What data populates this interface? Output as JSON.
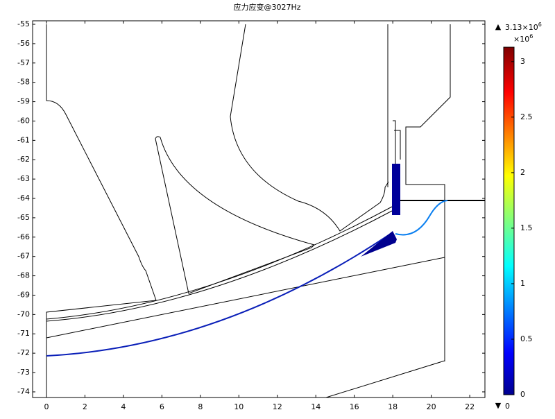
{
  "chart_data": {
    "type": "field",
    "title": "应力应变@3027Hz",
    "xlim": [
      -0.72,
      22.79
    ],
    "xticks": [
      0,
      2,
      4,
      6,
      8,
      10,
      12,
      14,
      16,
      18,
      20,
      22
    ],
    "ylim": [
      -74.29,
      -54.82
    ],
    "yticks": [
      -55,
      -56,
      -57,
      -58,
      -59,
      -60,
      -61,
      -62,
      -63,
      -64,
      -65,
      -66,
      -67,
      -68,
      -69,
      -70,
      -71,
      -72,
      -73,
      -74
    ],
    "colorbar": {
      "lim": [
        0,
        3.13
      ],
      "ticks": [
        0,
        0.5,
        1,
        1.5,
        2,
        2.5,
        3
      ],
      "max_mantissa": "3.13×10",
      "max_exponent": "6",
      "scale_prefix": "×10",
      "scale_exponent": "6",
      "min_label": "0"
    }
  }
}
